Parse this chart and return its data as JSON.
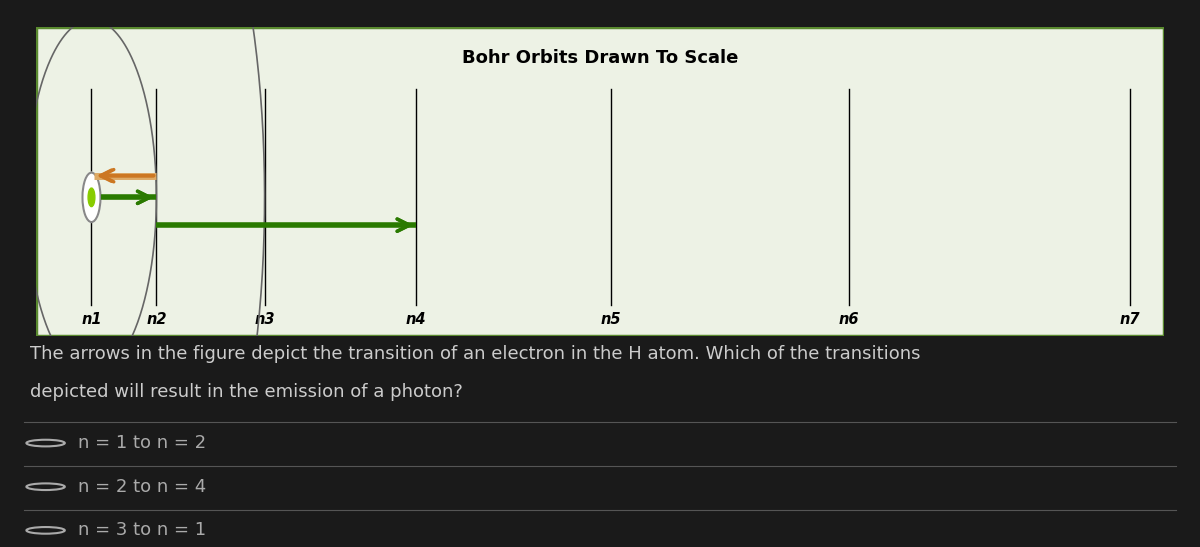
{
  "title": "Bohr Orbits Drawn To Scale",
  "bg_outer": "#1a1a1a",
  "bg_diagram": "#edf2e5",
  "border_color": "#5a8a2f",
  "n_labels": [
    "n1",
    "n2",
    "n3",
    "n4",
    "n5",
    "n6",
    "n7"
  ],
  "n2_vals": [
    1,
    4,
    9,
    16,
    25,
    36,
    49
  ],
  "orbit_color": "#666666",
  "nucleus_ring_color": "#888888",
  "nucleus_dot_color": "#88cc00",
  "arrow_orange_color": "#cc7722",
  "arrow_orange_fill": "#ddaa66",
  "arrow_green_color": "#2a7a00",
  "question_text1": "The arrows in the figure depict the transition of an electron in the H atom. Which of the transitions",
  "question_text2": "depicted will result in the emission of a photon?",
  "options": [
    "n = 1 to n = 2",
    "n = 2 to n = 4",
    "n = 3 to n = 1"
  ],
  "question_color": "#cccccc",
  "option_color": "#aaaaaa",
  "divider_color": "#555555",
  "title_fontsize": 13,
  "label_fontsize": 10.5,
  "question_fontsize": 13,
  "option_fontsize": 13
}
